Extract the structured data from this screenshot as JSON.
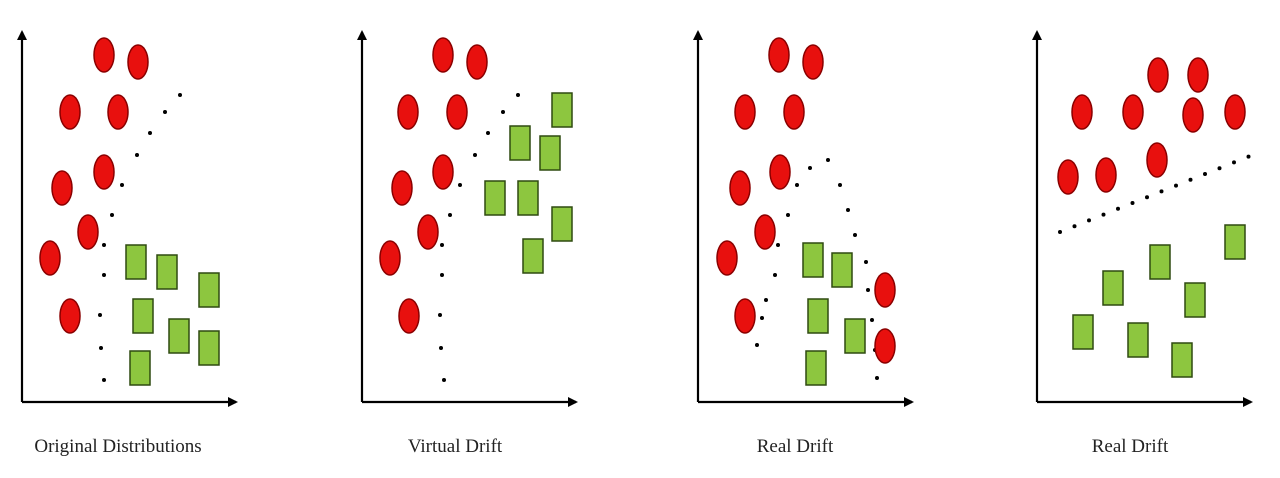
{
  "panels": [
    {
      "caption": "Original Distributions"
    },
    {
      "caption": "Virtual Drift"
    },
    {
      "caption": "Real Drift"
    },
    {
      "caption": "Real Drift"
    }
  ]
}
